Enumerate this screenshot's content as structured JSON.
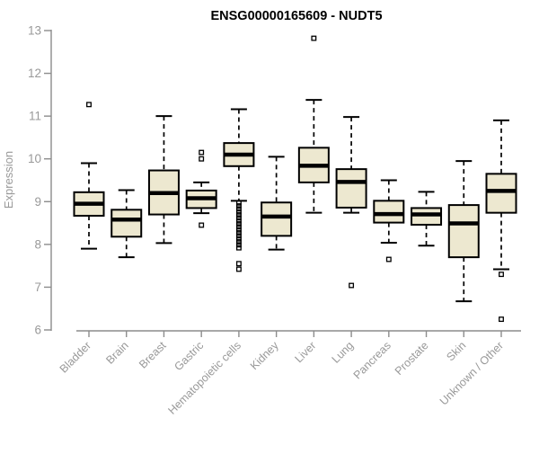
{
  "chart_data": {
    "type": "box",
    "title": "ENSG00000165609 - NUDT5",
    "ylabel": "Expression",
    "xlabel": "",
    "ylim": [
      6,
      13
    ],
    "yticks": [
      6,
      7,
      8,
      9,
      10,
      11,
      12,
      13
    ],
    "grid": false,
    "legend": null,
    "colors": {
      "box_fill": "#ede8d0",
      "box_border": "#000000",
      "median": "#000000",
      "whisker": "#000000",
      "axis": "#8c8c8c",
      "text": "#999999",
      "title": "#000000",
      "background": "#ffffff"
    },
    "categories": [
      "Bladder",
      "Brain",
      "Breast",
      "Gastric",
      "Hematopoietic cells",
      "Kidney",
      "Liver",
      "Lung",
      "Pancreas",
      "Prostate",
      "Skin",
      "Unknown / Other"
    ],
    "series": [
      {
        "category": "Bladder",
        "whisker_low": 7.9,
        "q1": 8.67,
        "median": 8.95,
        "q3": 9.22,
        "whisker_high": 9.9,
        "outliers": [
          11.27
        ]
      },
      {
        "category": "Brain",
        "whisker_low": 7.7,
        "q1": 8.18,
        "median": 8.58,
        "q3": 8.81,
        "whisker_high": 9.27,
        "outliers": []
      },
      {
        "category": "Breast",
        "whisker_low": 8.03,
        "q1": 8.7,
        "median": 9.2,
        "q3": 9.73,
        "whisker_high": 11.0,
        "outliers": []
      },
      {
        "category": "Gastric",
        "whisker_low": 8.73,
        "q1": 8.85,
        "median": 9.08,
        "q3": 9.26,
        "whisker_high": 9.45,
        "outliers": [
          10.15,
          10.0,
          8.45
        ]
      },
      {
        "category": "Hematopoietic cells",
        "whisker_low": 9.02,
        "q1": 9.83,
        "median": 10.1,
        "q3": 10.37,
        "whisker_high": 11.16,
        "outliers": [
          8.97,
          8.9,
          8.83,
          8.76,
          8.69,
          8.62,
          8.55,
          8.48,
          8.41,
          8.34,
          8.27,
          8.2,
          8.13,
          8.06,
          7.99,
          7.92,
          7.55,
          7.42
        ]
      },
      {
        "category": "Kidney",
        "whisker_low": 7.88,
        "q1": 8.2,
        "median": 8.65,
        "q3": 8.98,
        "whisker_high": 10.05,
        "outliers": []
      },
      {
        "category": "Liver",
        "whisker_low": 8.74,
        "q1": 9.45,
        "median": 9.84,
        "q3": 10.26,
        "whisker_high": 11.38,
        "outliers": [
          12.82
        ]
      },
      {
        "category": "Lung",
        "whisker_low": 8.74,
        "q1": 8.86,
        "median": 9.46,
        "q3": 9.76,
        "whisker_high": 10.98,
        "outliers": [
          7.04
        ]
      },
      {
        "category": "Pancreas",
        "whisker_low": 8.04,
        "q1": 8.51,
        "median": 8.71,
        "q3": 9.02,
        "whisker_high": 9.5,
        "outliers": [
          7.65
        ]
      },
      {
        "category": "Prostate",
        "whisker_low": 7.97,
        "q1": 8.46,
        "median": 8.7,
        "q3": 8.85,
        "whisker_high": 9.23,
        "outliers": []
      },
      {
        "category": "Skin",
        "whisker_low": 6.67,
        "q1": 7.7,
        "median": 8.49,
        "q3": 8.92,
        "whisker_high": 9.95,
        "outliers": []
      },
      {
        "category": "Unknown / Other",
        "whisker_low": 7.42,
        "q1": 8.74,
        "median": 9.25,
        "q3": 9.65,
        "whisker_high": 10.9,
        "outliers": [
          7.3,
          6.25
        ]
      }
    ]
  }
}
